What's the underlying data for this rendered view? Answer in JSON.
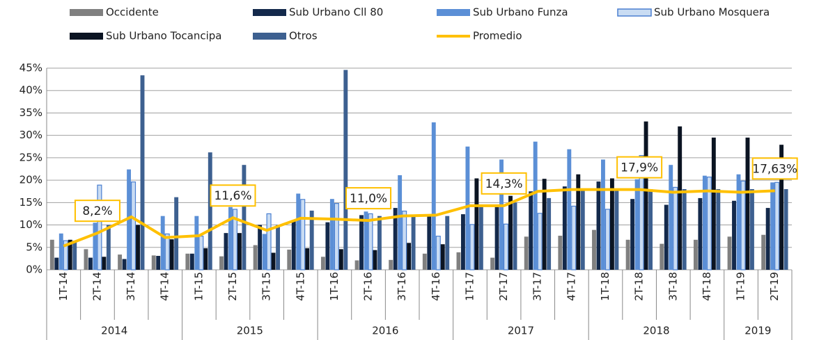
{
  "chart_data": {
    "type": "bar",
    "categories": [
      "1T-14",
      "2T-14",
      "3T-14",
      "4T-14",
      "1T-15",
      "2T-15",
      "3T-15",
      "4T-15",
      "1T-16",
      "2T-16",
      "3T-16",
      "4T-16",
      "1T-17",
      "2T-17",
      "3T-17",
      "4T-17",
      "1T-18",
      "2T-18",
      "3T-18",
      "4T-18",
      "1T-19",
      "2T-19"
    ],
    "groups": [
      {
        "label": "2014",
        "span": 4
      },
      {
        "label": "2015",
        "span": 4
      },
      {
        "label": "2016",
        "span": 4
      },
      {
        "label": "2017",
        "span": 4
      },
      {
        "label": "2018",
        "span": 4
      },
      {
        "label": "2019",
        "span": 2
      }
    ],
    "series": [
      {
        "name": "Occidente",
        "type": "bar",
        "color": "#808080",
        "values": [
          6.7,
          4.6,
          3.4,
          3.2,
          3.6,
          3.0,
          5.5,
          4.5,
          2.9,
          2.1,
          2.2,
          3.6,
          3.9,
          2.7,
          7.4,
          7.6,
          8.9,
          6.7,
          5.8,
          6.7,
          7.4,
          7.8
        ]
      },
      {
        "name": "Sub Urbano Cll 80",
        "type": "bar",
        "color": "#13294b",
        "values": [
          2.7,
          2.7,
          2.4,
          3.1,
          3.6,
          8.2,
          10.0,
          11.0,
          10.6,
          12.2,
          13.8,
          12.2,
          12.4,
          14.0,
          17.5,
          18.6,
          19.7,
          15.8,
          14.5,
          16.0,
          15.4,
          13.8
        ]
      },
      {
        "name": "Sub Urbano Funza",
        "type": "bar",
        "color": "#5b8fd6",
        "values": [
          8.1,
          10.5,
          22.4,
          12.0,
          12.0,
          14.0,
          8.0,
          17.0,
          15.8,
          13.0,
          21.1,
          32.9,
          27.5,
          24.6,
          28.6,
          26.9,
          24.6,
          20.2,
          23.4,
          21.0,
          21.3,
          19.5
        ]
      },
      {
        "name": "Sub Urbano Mosquera",
        "type": "bar",
        "color": "#c9dcf3",
        "edgecolor": "#4a7fd0",
        "values": [
          6.5,
          18.9,
          19.6,
          8.0,
          7.5,
          13.5,
          12.5,
          15.7,
          14.8,
          12.5,
          13.1,
          7.5,
          10.1,
          10.2,
          12.6,
          14.2,
          13.5,
          25.5,
          18.4,
          20.7,
          19.8,
          19.5
        ]
      },
      {
        "name": "Sub Urbano Tocancipa",
        "type": "bar",
        "color": "#0b1422",
        "values": [
          6.7,
          2.9,
          10.0,
          6.8,
          4.8,
          8.2,
          3.8,
          4.8,
          4.6,
          4.4,
          6.0,
          5.7,
          20.4,
          16.5,
          20.3,
          21.3,
          20.4,
          33.1,
          32.0,
          29.5,
          29.5,
          27.9
        ]
      },
      {
        "name": "Otros",
        "type": "bar",
        "color": "#3d6090",
        "values": [
          6.5,
          10.0,
          43.4,
          16.2,
          26.2,
          23.4,
          10.0,
          13.2,
          44.6,
          12.0,
          12.0,
          12.0,
          14.0,
          15.0,
          16.0,
          18.0,
          18.0,
          18.0,
          18.0,
          18.0,
          18.0,
          18.0
        ]
      },
      {
        "name": "Promedio",
        "type": "line",
        "color": "#ffc000",
        "values": [
          5.3,
          8.2,
          11.8,
          7.2,
          7.6,
          11.6,
          8.8,
          11.5,
          11.3,
          11.0,
          12.0,
          12.2,
          14.3,
          14.3,
          17.5,
          17.9,
          17.9,
          17.9,
          17.3,
          17.6,
          17.3,
          17.63
        ],
        "value_labels": [
          null,
          "8,2%",
          null,
          null,
          null,
          "11,6%",
          null,
          null,
          null,
          "11,0%",
          null,
          null,
          null,
          "14,3%",
          null,
          null,
          null,
          "17,9%",
          null,
          null,
          null,
          "17,63%"
        ]
      }
    ],
    "ylim": [
      0,
      45
    ],
    "yticks": [
      {
        "value": 0,
        "label": "0%"
      },
      {
        "value": 5,
        "label": "5%"
      },
      {
        "value": 10,
        "label": "10%"
      },
      {
        "value": 15,
        "label": "15%"
      },
      {
        "value": 20,
        "label": "20%"
      },
      {
        "value": 25,
        "label": "25%"
      },
      {
        "value": 30,
        "label": "30%"
      },
      {
        "value": 35,
        "label": "35%"
      },
      {
        "value": 40,
        "label": "40%"
      },
      {
        "value": 45,
        "label": "45%"
      }
    ],
    "grid": true,
    "legend": "top"
  }
}
